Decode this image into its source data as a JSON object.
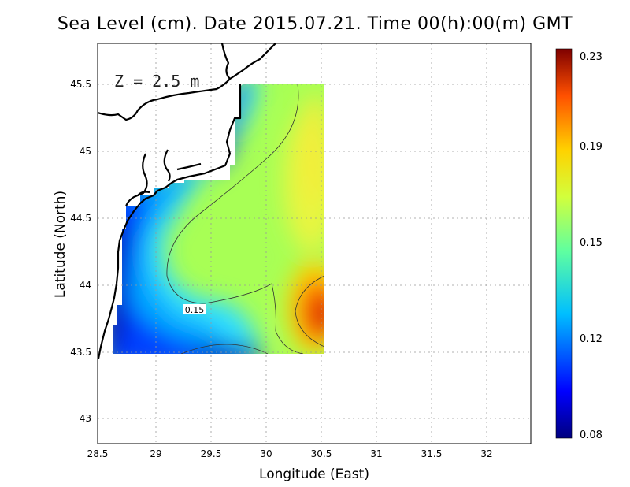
{
  "title": "Sea Level (cm). Date 2015.07.21. Time 00(h):00(m) GMT",
  "depth_label": "Z = 2.5 m",
  "contour_label": "0.15",
  "chart_data": {
    "type": "heatmap",
    "title": "Sea Level (cm). Date 2015.07.21. Time 00(h):00(m) GMT",
    "xlabel": "Longitude (East)",
    "ylabel": "Latitude (North)",
    "xlim": [
      28.5,
      32.4
    ],
    "ylim": [
      42.8,
      45.8
    ],
    "x_ticks": [
      "28.5",
      "29",
      "29.5",
      "30",
      "30.5",
      "31",
      "31.5",
      "32"
    ],
    "y_ticks": [
      "43",
      "43.5",
      "44",
      "44.5",
      "45",
      "45.5"
    ],
    "grid": true,
    "colorbar": {
      "min": 0.08,
      "max": 0.23,
      "ticks": [
        "0.08",
        "0.12",
        "0.15",
        "0.19",
        "0.23"
      ],
      "colors": [
        "#00007f",
        "#0000ff",
        "#00bfff",
        "#5fffa0",
        "#d2ff3c",
        "#ffd200",
        "#ff5000",
        "#7f0000"
      ]
    },
    "contours": [
      0.15
    ]
  }
}
